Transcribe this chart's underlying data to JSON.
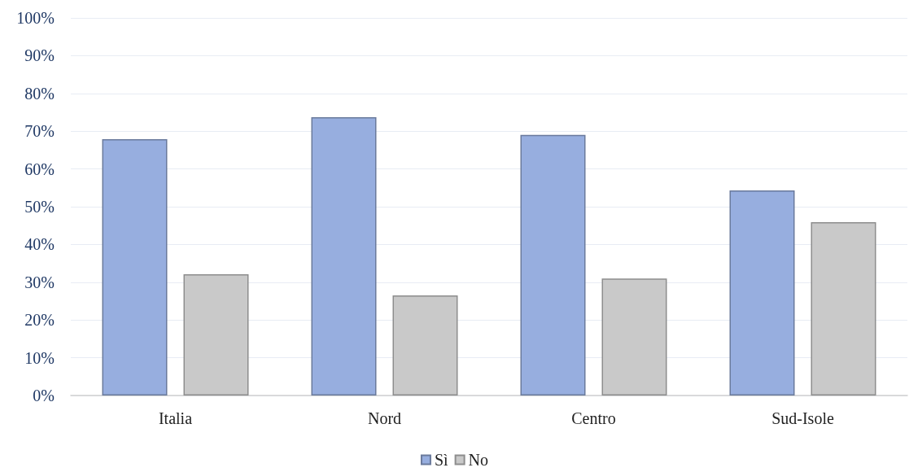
{
  "chart_data": {
    "type": "bar",
    "categories": [
      "Italia",
      "Nord",
      "Centro",
      "Sud-Isole"
    ],
    "series": [
      {
        "name": "Sì",
        "color": "#97aedf",
        "values": [
          67.9,
          73.7,
          69,
          54.3
        ]
      },
      {
        "name": "No",
        "color": "#c9c9c9",
        "values": [
          32.1,
          26.5,
          31,
          45.9
        ]
      }
    ],
    "ylim": [
      0,
      100
    ],
    "yticks": [
      {
        "value": 0,
        "label": "0%"
      },
      {
        "value": 10,
        "label": "10%"
      },
      {
        "value": 20,
        "label": "20%"
      },
      {
        "value": 30,
        "label": "30%"
      },
      {
        "value": 40,
        "label": "40%"
      },
      {
        "value": 50,
        "label": "50%"
      },
      {
        "value": 60,
        "label": "60%"
      },
      {
        "value": 70,
        "label": "70%"
      },
      {
        "value": 80,
        "label": "80%"
      },
      {
        "value": 90,
        "label": "90%"
      },
      {
        "value": 100,
        "label": "100%"
      }
    ],
    "grid": "y",
    "legend": "bottom"
  }
}
